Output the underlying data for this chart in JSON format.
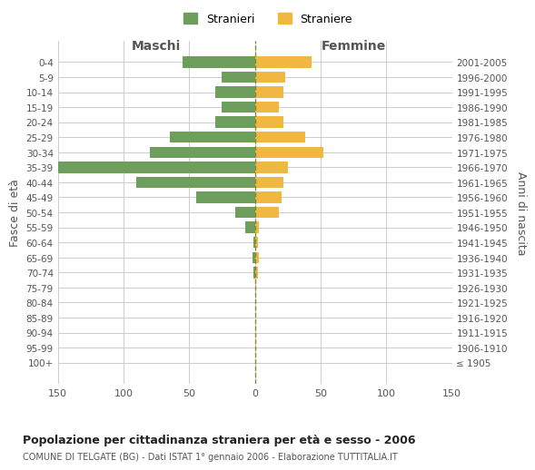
{
  "age_groups": [
    "100+",
    "95-99",
    "90-94",
    "85-89",
    "80-84",
    "75-79",
    "70-74",
    "65-69",
    "60-64",
    "55-59",
    "50-54",
    "45-49",
    "40-44",
    "35-39",
    "30-34",
    "25-29",
    "20-24",
    "15-19",
    "10-14",
    "5-9",
    "0-4"
  ],
  "birth_years": [
    "≤ 1905",
    "1906-1910",
    "1911-1915",
    "1916-1920",
    "1921-1925",
    "1926-1930",
    "1931-1935",
    "1936-1940",
    "1941-1945",
    "1946-1950",
    "1951-1955",
    "1956-1960",
    "1961-1965",
    "1966-1970",
    "1971-1975",
    "1976-1980",
    "1981-1985",
    "1986-1990",
    "1991-1995",
    "1996-2000",
    "2001-2005"
  ],
  "maschi": [
    0,
    0,
    0,
    0,
    0,
    0,
    1,
    2,
    1,
    7,
    15,
    45,
    90,
    155,
    80,
    65,
    30,
    25,
    30,
    25,
    55
  ],
  "femmine": [
    0,
    0,
    0,
    0,
    0,
    1,
    2,
    3,
    2,
    3,
    18,
    20,
    22,
    25,
    52,
    38,
    22,
    18,
    22,
    23,
    43
  ],
  "maschi_color": "#6d9e5b",
  "femmine_color": "#f0b840",
  "title": "Popolazione per cittadinanza straniera per età e sesso - 2006",
  "subtitle": "COMUNE DI TELGATE (BG) - Dati ISTAT 1° gennaio 2006 - Elaborazione TUTTITALIA.IT",
  "xlabel_left": "Maschi",
  "xlabel_right": "Femmine",
  "ylabel_left": "Fasce di età",
  "ylabel_right": "Anni di nascita",
  "xlim": 150,
  "legend_stranieri": "Stranieri",
  "legend_straniere": "Straniere",
  "background_color": "#ffffff",
  "grid_color": "#cccccc"
}
